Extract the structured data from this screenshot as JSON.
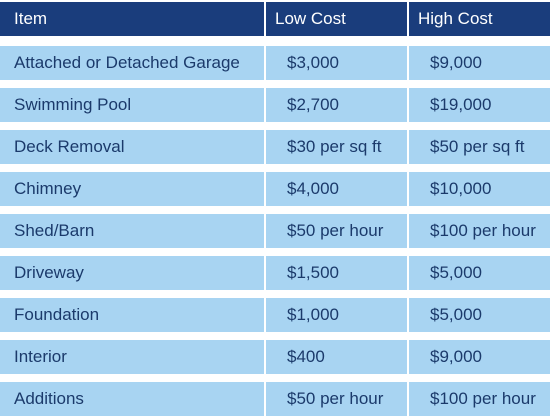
{
  "table": {
    "headers": [
      "Item",
      "Low Cost",
      "High Cost"
    ],
    "rows": [
      [
        "Attached or Detached Garage",
        "$3,000",
        "$9,000"
      ],
      [
        "Swimming Pool",
        "$2,700",
        "$19,000"
      ],
      [
        "Deck Removal",
        "$30 per sq ft",
        "$50 per sq ft"
      ],
      [
        "Chimney",
        "$4,000",
        "$10,000"
      ],
      [
        "Shed/Barn",
        "$50 per hour",
        "$100 per hour"
      ],
      [
        "Driveway",
        "$1,500",
        "$5,000"
      ],
      [
        "Foundation",
        "$1,000",
        "$5,000"
      ],
      [
        "Interior",
        "$400",
        "$9,000"
      ],
      [
        "Additions",
        "$50 per hour",
        "$100 per hour"
      ]
    ],
    "colors": {
      "header_bg": "#1a3d7c",
      "header_text": "#ffffff",
      "row_bg": "#a8d4f2",
      "row_text": "#1b3a6b"
    }
  }
}
